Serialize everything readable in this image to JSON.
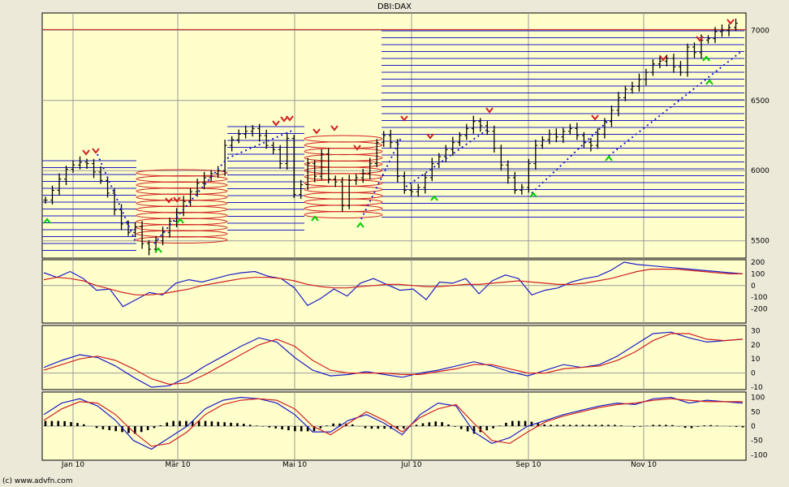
{
  "title": "DBI:DAX",
  "credit": "(c) www.advfn.com",
  "colors": {
    "panel_bg": "#ffffcc",
    "frame_bg": "#ece9d8",
    "blue": "#1c1cc8",
    "red": "#d02020",
    "green": "#00cc00",
    "grid": "#9a9a9a",
    "bars": "#000000"
  },
  "x_axis": {
    "labels": [
      "Jan 10",
      "Mär 10",
      "Mai 10",
      "Jul 10",
      "Sep 10",
      "Nov 10"
    ]
  },
  "chart_data": [
    {
      "type": "ohlc",
      "name": "price",
      "ylim": [
        5400,
        7100
      ],
      "yticks": [
        5500,
        6000,
        6500,
        7000
      ],
      "reference_line": 7005,
      "months_positions": [
        "Jan 10",
        "Mär 10",
        "Mai 10",
        "Jul 10",
        "Sep 10",
        "Nov 10"
      ],
      "close": [
        5790,
        5860,
        5940,
        6010,
        6040,
        6060,
        6050,
        5990,
        5930,
        5840,
        5720,
        5620,
        5560,
        5600,
        5480,
        5440,
        5500,
        5560,
        5640,
        5700,
        5780,
        5850,
        5910,
        5950,
        5980,
        6000,
        6180,
        6220,
        6260,
        6280,
        6300,
        6250,
        6180,
        6150,
        6050,
        6230,
        5830,
        5900,
        6050,
        5960,
        6120,
        5940,
        5920,
        5750,
        5930,
        5950,
        5980,
        6050,
        6200,
        6250,
        6200,
        5960,
        5860,
        5850,
        5880,
        5950,
        6050,
        6100,
        6150,
        6200,
        6250,
        6300,
        6350,
        6320,
        6280,
        6160,
        6040,
        5950,
        5860,
        5880,
        6050,
        6180,
        6220,
        6260,
        6240,
        6280,
        6300,
        6250,
        6200,
        6180,
        6260,
        6350,
        6430,
        6520,
        6580,
        6600,
        6650,
        6700,
        6760,
        6780,
        6800,
        6740,
        6700,
        6880,
        6840,
        6930,
        6940,
        6990,
        7000,
        7020,
        7050
      ]
    },
    {
      "type": "line",
      "name": "oscillator-1",
      "ylim": [
        -300,
        200
      ],
      "yticks": [
        200,
        100,
        0,
        -100,
        -200
      ],
      "series": [
        {
          "color": "blue",
          "values": [
            110,
            70,
            120,
            60,
            -40,
            -30,
            -180,
            -120,
            -60,
            -80,
            20,
            50,
            30,
            60,
            90,
            110,
            120,
            80,
            60,
            -20,
            -170,
            -110,
            -30,
            -90,
            20,
            60,
            10,
            -40,
            -30,
            -120,
            30,
            20,
            60,
            -70,
            40,
            90,
            60,
            -80,
            -40,
            -20,
            30,
            60,
            80,
            130,
            200,
            180,
            170,
            160,
            150,
            140,
            130,
            120,
            110,
            100
          ]
        },
        {
          "color": "red",
          "values": [
            50,
            70,
            60,
            40,
            0,
            -30,
            -60,
            -80,
            -80,
            -70,
            -50,
            -30,
            0,
            20,
            40,
            60,
            70,
            70,
            60,
            40,
            10,
            -10,
            -20,
            -20,
            -10,
            0,
            10,
            10,
            0,
            -10,
            -10,
            0,
            10,
            10,
            20,
            30,
            40,
            30,
            20,
            10,
            10,
            20,
            40,
            60,
            90,
            120,
            140,
            140,
            140,
            130,
            120,
            110,
            100,
            100
          ]
        }
      ]
    },
    {
      "type": "line",
      "name": "oscillator-2",
      "ylim": [
        -10,
        32
      ],
      "yticks": [
        30,
        20,
        10,
        0,
        -10
      ],
      "series": [
        {
          "color": "blue",
          "values": [
            4,
            9,
            13,
            11,
            5,
            -3,
            -10,
            -9,
            -3,
            5,
            12,
            19,
            25,
            22,
            11,
            2,
            -2,
            -1,
            1,
            -1,
            -3,
            0,
            2,
            5,
            8,
            5,
            1,
            -2,
            2,
            6,
            4,
            6,
            12,
            20,
            28,
            29,
            25,
            22,
            23,
            24
          ]
        },
        {
          "color": "red",
          "values": [
            2,
            6,
            10,
            12,
            9,
            3,
            -4,
            -8,
            -7,
            -1,
            6,
            13,
            20,
            24,
            19,
            9,
            2,
            0,
            0,
            0,
            -1,
            -1,
            1,
            3,
            6,
            6,
            3,
            0,
            0,
            3,
            4,
            5,
            9,
            15,
            23,
            28,
            28,
            24,
            23,
            24
          ]
        }
      ]
    },
    {
      "type": "histogram+line",
      "name": "oscillator-3",
      "ylim": [
        -110,
        110
      ],
      "yticks": [
        100,
        50,
        0,
        -50,
        -100
      ],
      "series": [
        {
          "color": "blue",
          "values": [
            40,
            80,
            95,
            70,
            20,
            -50,
            -80,
            -40,
            0,
            60,
            90,
            100,
            95,
            80,
            40,
            -20,
            -20,
            20,
            40,
            10,
            -30,
            40,
            80,
            70,
            -20,
            -60,
            -40,
            0,
            20,
            40,
            55,
            70,
            80,
            75,
            95,
            100,
            80,
            90,
            85,
            80
          ]
        },
        {
          "color": "red",
          "values": [
            20,
            60,
            85,
            80,
            40,
            -20,
            -70,
            -60,
            -20,
            40,
            75,
            90,
            95,
            90,
            60,
            0,
            -30,
            10,
            50,
            20,
            -20,
            30,
            60,
            75,
            10,
            -50,
            -60,
            -20,
            15,
            35,
            50,
            65,
            75,
            80,
            90,
            95,
            90,
            85,
            85,
            85
          ]
        }
      ]
    }
  ]
}
